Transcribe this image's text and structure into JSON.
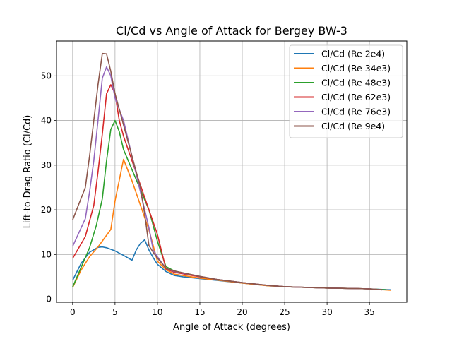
{
  "chart_data": {
    "type": "line",
    "title": "Cl/Cd vs Angle of Attack for Bergey BW-3",
    "xlabel": "Angle of Attack (degrees)",
    "ylabel": "Lift-to-Drag Ratio (Cl/Cd)",
    "xlim": [
      -1.9,
      39.4
    ],
    "ylim": [
      -0.7,
      57.8
    ],
    "xticks": [
      0,
      5,
      10,
      15,
      20,
      25,
      30,
      35
    ],
    "yticks": [
      0,
      10,
      20,
      30,
      40,
      50
    ],
    "grid": true,
    "legend_position": "top-right",
    "series": [
      {
        "name": "Cl/Cd (Re 2e4)",
        "color": "#1f77b4",
        "points": [
          [
            0,
            4.2
          ],
          [
            1,
            8
          ],
          [
            2,
            10.5
          ],
          [
            3,
            11.6
          ],
          [
            3.5,
            11.7
          ],
          [
            4,
            11.5
          ],
          [
            5,
            10.8
          ],
          [
            6,
            9.8
          ],
          [
            7,
            8.7
          ],
          [
            7.5,
            11
          ],
          [
            8,
            12.5
          ],
          [
            8.5,
            13.3
          ],
          [
            9,
            11
          ],
          [
            9.5,
            9.3
          ],
          [
            10,
            7.8
          ],
          [
            11,
            6.2
          ],
          [
            12,
            5.3
          ],
          [
            13,
            5
          ],
          [
            15,
            4.6
          ],
          [
            17,
            4.2
          ],
          [
            20,
            3.6
          ],
          [
            23,
            3
          ],
          [
            25,
            2.8
          ],
          [
            28,
            2.6
          ],
          [
            30,
            2.5
          ],
          [
            33,
            2.4
          ],
          [
            35,
            2.3
          ],
          [
            37.5,
            2.1
          ]
        ]
      },
      {
        "name": "Cl/Cd (Re 34e3)",
        "color": "#ff7f0e",
        "points": [
          [
            0,
            2.6
          ],
          [
            1,
            6.5
          ],
          [
            2,
            9.5
          ],
          [
            3,
            11.7
          ],
          [
            4.5,
            15.6
          ],
          [
            5,
            22
          ],
          [
            6,
            31.3
          ],
          [
            7,
            26.5
          ],
          [
            8,
            21
          ],
          [
            9,
            15.5
          ],
          [
            10,
            8.5
          ],
          [
            11,
            6.6
          ],
          [
            12,
            5.6
          ],
          [
            15,
            4.7
          ],
          [
            17,
            4.3
          ],
          [
            20,
            3.6
          ],
          [
            23,
            3
          ],
          [
            25,
            2.8
          ],
          [
            28,
            2.6
          ],
          [
            30,
            2.5
          ],
          [
            33,
            2.4
          ],
          [
            35,
            2.3
          ],
          [
            37.5,
            2
          ]
        ]
      },
      {
        "name": "Cl/Cd (Re 48e3)",
        "color": "#2ca02c",
        "points": [
          [
            0,
            2.7
          ],
          [
            1,
            7.1
          ],
          [
            2,
            11.5
          ],
          [
            2.8,
            16.5
          ],
          [
            3.5,
            22.5
          ],
          [
            4,
            31
          ],
          [
            4.5,
            38
          ],
          [
            5,
            40
          ],
          [
            5.5,
            37.5
          ],
          [
            6,
            33.5
          ],
          [
            7,
            29
          ],
          [
            8,
            24.5
          ],
          [
            9,
            20
          ],
          [
            10,
            13
          ],
          [
            11,
            7.3
          ],
          [
            12,
            6.3
          ],
          [
            15,
            5
          ],
          [
            17,
            4.4
          ],
          [
            20,
            3.7
          ],
          [
            23,
            3.1
          ],
          [
            25,
            2.8
          ],
          [
            28,
            2.6
          ],
          [
            30,
            2.5
          ],
          [
            33,
            2.4
          ],
          [
            35,
            2.3
          ],
          [
            37,
            2.1
          ]
        ]
      },
      {
        "name": "Cl/Cd (Re 62e3)",
        "color": "#d62728",
        "points": [
          [
            0,
            9.1
          ],
          [
            1.5,
            14
          ],
          [
            2.5,
            21
          ],
          [
            3,
            28.5
          ],
          [
            3.5,
            37
          ],
          [
            4,
            46
          ],
          [
            4.5,
            48
          ],
          [
            5,
            46
          ],
          [
            5.5,
            40
          ],
          [
            6,
            36.5
          ],
          [
            7,
            31
          ],
          [
            8,
            25.5
          ],
          [
            9,
            20
          ],
          [
            10,
            14.5
          ],
          [
            11,
            6.8
          ],
          [
            12,
            6
          ],
          [
            15,
            5
          ],
          [
            17,
            4.4
          ],
          [
            20,
            3.7
          ],
          [
            23,
            3.1
          ],
          [
            25,
            2.8
          ],
          [
            28,
            2.6
          ],
          [
            30,
            2.5
          ],
          [
            33,
            2.4
          ],
          [
            35,
            2.3
          ],
          [
            36.5,
            2.1
          ]
        ]
      },
      {
        "name": "Cl/Cd (Re 76e3)",
        "color": "#9467bd",
        "points": [
          [
            0,
            11.8
          ],
          [
            1.5,
            18
          ],
          [
            2,
            24
          ],
          [
            2.5,
            31
          ],
          [
            3,
            40
          ],
          [
            3.5,
            49.5
          ],
          [
            4,
            52
          ],
          [
            4.5,
            50
          ],
          [
            5,
            45
          ],
          [
            6,
            40
          ],
          [
            7,
            32
          ],
          [
            8,
            24
          ],
          [
            9,
            16
          ],
          [
            9.5,
            11
          ],
          [
            10,
            9.5
          ],
          [
            11,
            6.9
          ],
          [
            12,
            6.2
          ],
          [
            15,
            5.1
          ],
          [
            17,
            4.4
          ],
          [
            20,
            3.7
          ],
          [
            23,
            3.1
          ],
          [
            25,
            2.8
          ],
          [
            28,
            2.6
          ],
          [
            30,
            2.5
          ],
          [
            33,
            2.4
          ],
          [
            35,
            2.3
          ],
          [
            36.5,
            2.1
          ]
        ]
      },
      {
        "name": "Cl/Cd (Re 9e4)",
        "color": "#8c564b",
        "points": [
          [
            0,
            17.7
          ],
          [
            1.5,
            25
          ],
          [
            2,
            32
          ],
          [
            2.5,
            40
          ],
          [
            3,
            48
          ],
          [
            3.5,
            55
          ],
          [
            4,
            54.9
          ],
          [
            4.5,
            51
          ],
          [
            5,
            46
          ],
          [
            6,
            39
          ],
          [
            7,
            32
          ],
          [
            8,
            25
          ],
          [
            8.5,
            19
          ],
          [
            9,
            12
          ],
          [
            9.5,
            10.5
          ],
          [
            10,
            9.2
          ],
          [
            11,
            6.9
          ],
          [
            12,
            6.3
          ],
          [
            15,
            5.1
          ],
          [
            17,
            4.4
          ],
          [
            20,
            3.7
          ],
          [
            23,
            3.1
          ],
          [
            25,
            2.8
          ],
          [
            28,
            2.6
          ],
          [
            30,
            2.5
          ],
          [
            33,
            2.4
          ],
          [
            35,
            2.3
          ],
          [
            36.5,
            2.1
          ]
        ]
      }
    ]
  }
}
